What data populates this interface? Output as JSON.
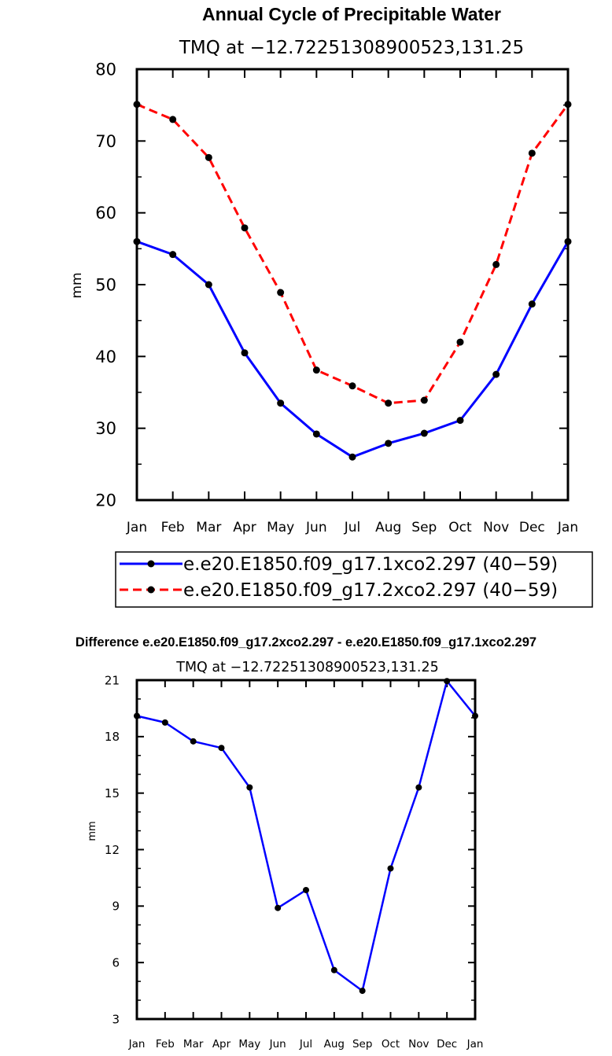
{
  "chart_data": [
    {
      "type": "line",
      "title": "Annual Cycle of Precipitable Water",
      "subtitle": "TMQ at −12.72251308900523,131.25",
      "ylabel": "mm",
      "xlabel": "",
      "ylim": [
        20,
        80
      ],
      "yticks": [
        20,
        30,
        40,
        50,
        60,
        70,
        80
      ],
      "categories": [
        "Jan",
        "Feb",
        "Mar",
        "Apr",
        "May",
        "Jun",
        "Jul",
        "Aug",
        "Sep",
        "Oct",
        "Nov",
        "Dec",
        "Jan"
      ],
      "legend_position": "bottom",
      "series": [
        {
          "name": "e.e20.E1850.f09_g17.1xco2.297 (40−59)",
          "color": "#0000ff",
          "style": "solid",
          "values": [
            56.0,
            54.2,
            50.0,
            40.5,
            33.5,
            29.2,
            26.0,
            27.9,
            29.3,
            31.1,
            37.5,
            47.3,
            56.0
          ]
        },
        {
          "name": "e.e20.E1850.f09_g17.2xco2.297 (40−59)",
          "color": "#ff0000",
          "style": "dashed",
          "values": [
            75.1,
            73.0,
            67.7,
            57.9,
            48.9,
            38.1,
            35.9,
            33.5,
            33.9,
            42.0,
            52.8,
            68.3,
            75.1
          ]
        }
      ]
    },
    {
      "type": "line",
      "title": "Difference e.e20.E1850.f09_g17.2xco2.297 - e.e20.E1850.f09_g17.1xco2.297",
      "subtitle": "TMQ at −12.72251308900523,131.25",
      "ylabel": "mm",
      "xlabel": "",
      "ylim": [
        3,
        21
      ],
      "yticks": [
        3,
        6,
        9,
        12,
        15,
        18,
        21
      ],
      "categories": [
        "Jan",
        "Feb",
        "Mar",
        "Apr",
        "May",
        "Jun",
        "Jul",
        "Aug",
        "Sep",
        "Oct",
        "Nov",
        "Dec",
        "Jan"
      ],
      "series": [
        {
          "name": "Difference",
          "color": "#0000ff",
          "style": "solid",
          "values": [
            19.1,
            18.75,
            17.75,
            17.4,
            15.3,
            8.9,
            9.85,
            5.6,
            4.5,
            11.0,
            15.3,
            20.95,
            19.1
          ]
        }
      ]
    }
  ]
}
